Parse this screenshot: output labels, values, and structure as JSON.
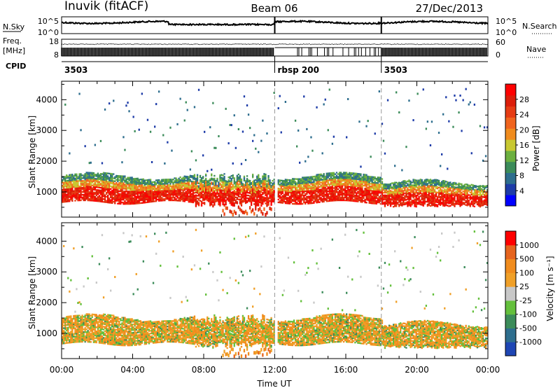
{
  "header": {
    "station": "Inuvik (fitACF)",
    "beam": "Beam 06",
    "date": "27/Dec/2013"
  },
  "left_labels": {
    "nsky": "N.Sky",
    "nsky_ticks": [
      "10^5",
      "10^0"
    ],
    "freq_line1": "Freq.",
    "freq_line2": "[MHz]",
    "freq_ticks": [
      "18",
      "8"
    ],
    "cpid": "CPID"
  },
  "right_labels": {
    "nsearch": "N.Search",
    "nsearch_ticks": [
      "10^5",
      "10^0"
    ],
    "nave": "Nave",
    "nave_ticks": [
      "60",
      "0"
    ]
  },
  "cpid_segments": [
    {
      "label": "3503",
      "start_hour": 0,
      "end_hour": 12.0
    },
    {
      "label": "rbsp 200",
      "start_hour": 12.0,
      "end_hour": 18.0
    },
    {
      "label": "3503",
      "start_hour": 18.0,
      "end_hour": 24.0
    }
  ],
  "colors": {
    "power": [
      "#0000ff",
      "#1e3ca8",
      "#2e6e8e",
      "#3c8c5a",
      "#6cb040",
      "#c8c832",
      "#f08c1e",
      "#f0641e",
      "#e63c14",
      "#dc1e0a",
      "#ff0000"
    ],
    "velocity": [
      "#1e46b4",
      "#2e6e8e",
      "#3c8c5a",
      "#64c03c",
      "#c8c8c8",
      "#f0a028",
      "#f08c1e",
      "#e6641e",
      "#ff0000"
    ]
  },
  "chart_data": [
    {
      "type": "heatmap",
      "name": "power",
      "xlabel": "",
      "ylabel": "Slant Range [km]",
      "xlim": [
        0,
        24
      ],
      "ylim": [
        180,
        4600
      ],
      "yticks": [
        1000,
        2000,
        3000,
        4000
      ],
      "colorbar": {
        "label": "Power [dB]",
        "ticks": [
          "28",
          "24",
          "20",
          "16",
          "12",
          "8",
          "4"
        ]
      },
      "vertical_markers_hours": [
        12.0,
        18.0
      ]
    },
    {
      "type": "heatmap",
      "name": "velocity",
      "xlabel": "Time UT",
      "ylabel": "Slant Range [km]",
      "xlim": [
        0,
        24
      ],
      "ylim": [
        180,
        4600
      ],
      "xticks": [
        "00:00",
        "04:00",
        "08:00",
        "12:00",
        "16:00",
        "20:00",
        "00:00"
      ],
      "yticks": [
        1000,
        2000,
        3000,
        4000
      ],
      "colorbar": {
        "label": "Velocity [m s⁻¹]",
        "ticks": [
          "1000",
          "500",
          "100",
          "25",
          "-25",
          "-100",
          "-500",
          "-1000"
        ]
      },
      "vertical_markers_hours": [
        12.0,
        18.0
      ]
    }
  ]
}
